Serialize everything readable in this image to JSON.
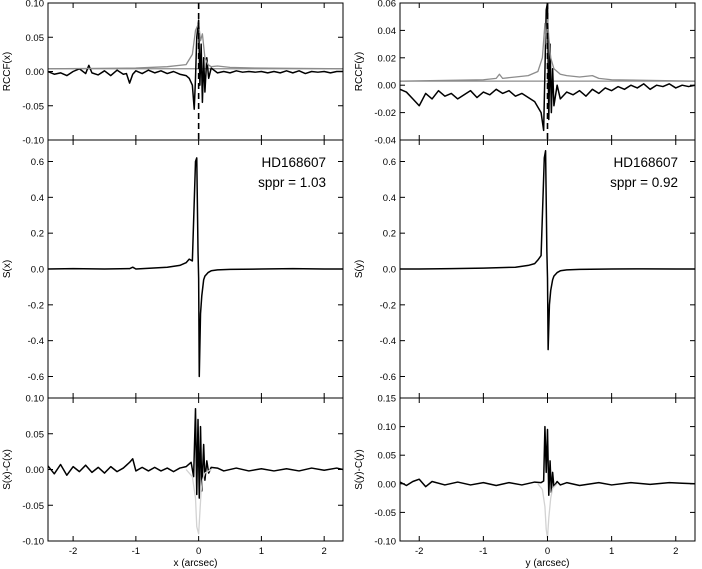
{
  "figure": {
    "colors": {
      "primary": "#000000",
      "secondary": "#8c8c8c",
      "tertiary": "#d2d2d2",
      "frame": "#000000",
      "zero_line": "#8c8c8c"
    }
  },
  "chart_data": [
    {
      "id": "x-rccf",
      "type": "line",
      "column": "x",
      "row": "top",
      "ylabel": "RCCF(x)",
      "ylim": [
        -0.1,
        0.1
      ],
      "xlim": [
        -2.4,
        2.3
      ],
      "yticks": [
        -0.1,
        -0.05,
        0.0,
        0.05,
        0.1
      ],
      "ytick_labels": [
        "-0.10",
        "-0.05",
        "0.00",
        "0.05",
        "0.10"
      ],
      "dashed_vline_x": 0.0,
      "zero_line_y": 0.004,
      "series": [
        {
          "role": "measured",
          "color": "#000000",
          "x": [
            -2.4,
            -2.3,
            -2.2,
            -2.1,
            -2.0,
            -1.9,
            -1.8,
            -1.75,
            -1.7,
            -1.6,
            -1.5,
            -1.4,
            -1.3,
            -1.2,
            -1.15,
            -1.1,
            -1.05,
            -1.0,
            -0.9,
            -0.8,
            -0.7,
            -0.6,
            -0.5,
            -0.4,
            -0.3,
            -0.2,
            -0.15,
            -0.1,
            -0.07,
            -0.05,
            -0.03,
            0.0,
            0.02,
            0.04,
            0.06,
            0.08,
            0.1,
            0.13,
            0.16,
            0.2,
            0.3,
            0.4,
            0.5,
            0.6,
            0.7,
            0.8,
            0.9,
            1.0,
            1.1,
            1.2,
            1.3,
            1.4,
            1.5,
            1.6,
            1.7,
            1.8,
            1.9,
            2.0,
            2.1,
            2.2,
            2.3
          ],
          "y": [
            0.0,
            -0.004,
            -0.002,
            -0.006,
            0.0,
            0.004,
            -0.003,
            0.009,
            -0.002,
            -0.005,
            0.001,
            -0.006,
            0.002,
            -0.004,
            -0.003,
            -0.017,
            -0.004,
            0.001,
            -0.003,
            0.002,
            -0.002,
            0.001,
            -0.003,
            0.0,
            -0.004,
            -0.006,
            -0.01,
            -0.02,
            -0.055,
            -0.01,
            0.05,
            0.075,
            -0.02,
            0.04,
            -0.045,
            0.02,
            -0.03,
            0.02,
            -0.01,
            0.005,
            -0.002,
            0.0,
            -0.002,
            0.001,
            -0.001,
            0.0,
            -0.001,
            0.0,
            -0.002,
            0.0,
            -0.002,
            0.001,
            -0.002,
            0.001,
            -0.003,
            0.0,
            -0.001,
            0.0,
            -0.002,
            0.0,
            0.0
          ]
        },
        {
          "role": "model",
          "color": "#8c8c8c",
          "x": [
            -2.4,
            -1.0,
            -0.5,
            -0.2,
            -0.1,
            -0.05,
            0.0,
            0.03,
            0.06,
            0.1,
            0.15,
            0.2,
            0.3,
            0.5,
            0.9,
            2.3
          ],
          "y": [
            0.004,
            0.005,
            0.007,
            0.01,
            0.025,
            0.06,
            0.07,
            0.045,
            0.055,
            0.02,
            0.01,
            0.007,
            0.008,
            0.006,
            0.005,
            0.004
          ]
        }
      ]
    },
    {
      "id": "x-s",
      "type": "line",
      "column": "x",
      "row": "middle",
      "ylabel": "S(x)",
      "ylim": [
        -0.72,
        0.72
      ],
      "xlim": [
        -2.4,
        2.3
      ],
      "yticks": [
        -0.6,
        -0.4,
        -0.2,
        0.0,
        0.2,
        0.4,
        0.6
      ],
      "ytick_labels": [
        "-0.6",
        "-0.4",
        "-0.2",
        "0.0",
        "0.2",
        "0.4",
        "0.6"
      ],
      "annotation": {
        "object": "HD168607",
        "sppr": "sppr = 1.03"
      },
      "series": [
        {
          "role": "measured",
          "color": "#000000",
          "x": [
            -2.4,
            -2.0,
            -1.5,
            -1.1,
            -1.05,
            -1.0,
            -0.5,
            -0.3,
            -0.2,
            -0.15,
            -0.1,
            -0.05,
            -0.03,
            -0.01,
            0.0,
            0.01,
            0.03,
            0.05,
            0.08,
            0.1,
            0.15,
            0.2,
            0.3,
            0.5,
            1.0,
            1.5,
            2.0,
            2.3
          ],
          "y": [
            0.0,
            0.002,
            0.0,
            0.002,
            0.01,
            0.0,
            0.01,
            0.02,
            0.035,
            0.055,
            0.045,
            0.6,
            0.62,
            0.1,
            -0.05,
            -0.6,
            -0.25,
            -0.15,
            -0.06,
            -0.04,
            -0.02,
            -0.01,
            -0.005,
            -0.002,
            0.0,
            0.002,
            0.0,
            0.0
          ]
        }
      ]
    },
    {
      "id": "x-resid",
      "type": "line",
      "column": "x",
      "row": "bottom",
      "ylabel": "S(x)-C(x)",
      "xlabel": "x (arcsec)",
      "ylim": [
        -0.1,
        0.1
      ],
      "xlim": [
        -2.4,
        2.3
      ],
      "yticks": [
        -0.1,
        -0.05,
        0.0,
        0.05,
        0.1
      ],
      "ytick_labels": [
        "-0.10",
        "-0.05",
        "0.00",
        "0.05",
        "0.10"
      ],
      "xticks": [
        -2,
        -1,
        0,
        1,
        2
      ],
      "xtick_labels": [
        "-2",
        "-1",
        "0",
        "1",
        "2"
      ],
      "series": [
        {
          "role": "residual",
          "color": "#000000",
          "x": [
            -2.4,
            -2.3,
            -2.2,
            -2.1,
            -2.0,
            -1.9,
            -1.8,
            -1.7,
            -1.6,
            -1.5,
            -1.4,
            -1.3,
            -1.2,
            -1.1,
            -1.05,
            -1.0,
            -0.9,
            -0.8,
            -0.7,
            -0.6,
            -0.5,
            -0.4,
            -0.3,
            -0.2,
            -0.12,
            -0.08,
            -0.05,
            -0.03,
            -0.01,
            0.01,
            0.03,
            0.05,
            0.08,
            0.1,
            0.13,
            0.16,
            0.2,
            0.3,
            0.4,
            0.6,
            0.8,
            1.0,
            1.2,
            1.4,
            1.6,
            1.8,
            2.0,
            2.2,
            2.3
          ],
          "y": [
            0.005,
            -0.006,
            0.007,
            -0.008,
            0.004,
            -0.003,
            0.006,
            -0.004,
            0.003,
            -0.005,
            0.004,
            -0.003,
            0.002,
            0.01,
            0.015,
            -0.002,
            0.003,
            -0.002,
            0.003,
            -0.002,
            0.002,
            -0.003,
            0.002,
            0.004,
            0.01,
            -0.01,
            0.085,
            -0.035,
            0.07,
            -0.04,
            0.06,
            -0.03,
            0.035,
            -0.015,
            0.012,
            -0.005,
            0.003,
            0.002,
            -0.002,
            0.002,
            -0.002,
            0.001,
            -0.002,
            0.001,
            -0.002,
            0.002,
            -0.001,
            0.002,
            0.0
          ]
        },
        {
          "role": "component",
          "color": "#d2d2d2",
          "x": [
            -0.2,
            -0.1,
            -0.05,
            -0.03,
            0.0,
            0.02,
            0.04,
            0.06,
            0.1,
            0.2
          ],
          "y": [
            0.0,
            -0.01,
            -0.04,
            -0.08,
            -0.09,
            -0.06,
            -0.03,
            -0.015,
            -0.005,
            0.0
          ]
        }
      ]
    },
    {
      "id": "y-rccf",
      "type": "line",
      "column": "y",
      "row": "top",
      "ylabel": "RCCF(y)",
      "ylim": [
        -0.04,
        0.06
      ],
      "xlim": [
        -2.3,
        2.3
      ],
      "yticks": [
        -0.04,
        -0.02,
        0.0,
        0.02,
        0.04,
        0.06
      ],
      "ytick_labels": [
        "-0.04",
        "-0.02",
        "0.00",
        "0.02",
        "0.04",
        "0.06"
      ],
      "dashed_vline_x": 0.0,
      "zero_line_y": 0.003,
      "series": [
        {
          "role": "measured",
          "color": "#000000",
          "x": [
            -2.3,
            -2.2,
            -2.1,
            -2.0,
            -1.9,
            -1.8,
            -1.7,
            -1.6,
            -1.5,
            -1.4,
            -1.3,
            -1.2,
            -1.1,
            -1.0,
            -0.9,
            -0.8,
            -0.7,
            -0.6,
            -0.5,
            -0.4,
            -0.3,
            -0.2,
            -0.15,
            -0.1,
            -0.06,
            -0.04,
            -0.02,
            0.0,
            0.02,
            0.04,
            0.06,
            0.08,
            0.1,
            0.15,
            0.2,
            0.3,
            0.4,
            0.5,
            0.6,
            0.7,
            0.8,
            0.9,
            1.0,
            1.1,
            1.2,
            1.3,
            1.4,
            1.5,
            1.6,
            1.7,
            1.8,
            1.9,
            2.0,
            2.1,
            2.2,
            2.3
          ],
          "y": [
            -0.003,
            -0.005,
            -0.01,
            -0.015,
            -0.006,
            -0.01,
            -0.004,
            -0.008,
            -0.006,
            -0.01,
            -0.007,
            -0.004,
            -0.009,
            -0.005,
            -0.007,
            -0.003,
            -0.006,
            -0.004,
            -0.008,
            -0.006,
            -0.009,
            -0.012,
            -0.016,
            -0.02,
            -0.033,
            0.01,
            0.055,
            0.06,
            -0.025,
            0.03,
            -0.02,
            0.012,
            -0.015,
            0.0,
            -0.01,
            -0.005,
            -0.007,
            -0.004,
            -0.008,
            -0.003,
            -0.006,
            -0.002,
            -0.004,
            -0.001,
            -0.003,
            0.0,
            -0.002,
            0.001,
            -0.003,
            0.0,
            -0.001,
            0.001,
            -0.002,
            0.0,
            -0.001,
            0.0
          ]
        },
        {
          "role": "model",
          "color": "#8c8c8c",
          "x": [
            -2.3,
            -1.0,
            -0.8,
            -0.75,
            -0.7,
            -0.5,
            -0.3,
            -0.15,
            -0.08,
            -0.04,
            -0.02,
            0.0,
            0.02,
            0.05,
            0.1,
            0.15,
            0.2,
            0.3,
            0.5,
            0.7,
            0.8,
            1.0,
            2.3
          ],
          "y": [
            0.003,
            0.004,
            0.005,
            0.008,
            0.005,
            0.006,
            0.007,
            0.01,
            0.02,
            0.045,
            0.03,
            0.05,
            0.035,
            0.02,
            0.012,
            0.01,
            0.008,
            0.007,
            0.006,
            0.007,
            0.005,
            0.004,
            0.003
          ]
        }
      ]
    },
    {
      "id": "y-s",
      "type": "line",
      "column": "y",
      "row": "middle",
      "ylabel": "S(y)",
      "ylim": [
        -0.72,
        0.72
      ],
      "xlim": [
        -2.3,
        2.3
      ],
      "yticks": [
        -0.6,
        -0.4,
        -0.2,
        0.0,
        0.2,
        0.4,
        0.6
      ],
      "ytick_labels": [
        "-0.6",
        "-0.4",
        "-0.2",
        "0.0",
        "0.2",
        "0.4",
        "0.6"
      ],
      "annotation": {
        "object": "HD168607",
        "sppr": "sppr = 0.92"
      },
      "series": [
        {
          "role": "measured",
          "color": "#000000",
          "x": [
            -2.3,
            -2.0,
            -1.5,
            -1.0,
            -0.5,
            -0.3,
            -0.2,
            -0.15,
            -0.1,
            -0.05,
            -0.03,
            -0.01,
            0.0,
            0.01,
            0.03,
            0.05,
            0.08,
            0.1,
            0.15,
            0.2,
            0.3,
            0.5,
            1.0,
            1.5,
            2.0,
            2.3
          ],
          "y": [
            0.0,
            0.0,
            0.002,
            0.005,
            0.01,
            0.02,
            0.03,
            0.05,
            0.075,
            0.62,
            0.66,
            0.1,
            -0.05,
            -0.45,
            -0.2,
            -0.12,
            -0.06,
            -0.04,
            -0.02,
            -0.01,
            -0.005,
            -0.002,
            0.0,
            0.001,
            0.0,
            0.0
          ]
        }
      ]
    },
    {
      "id": "y-resid",
      "type": "line",
      "column": "y",
      "row": "bottom",
      "ylabel": "S(y)-C(y)",
      "xlabel": "y (arcsec)",
      "ylim": [
        -0.1,
        0.15
      ],
      "xlim": [
        -2.3,
        2.3
      ],
      "yticks": [
        -0.1,
        -0.05,
        0.0,
        0.05,
        0.1,
        0.15
      ],
      "ytick_labels": [
        "-0.10",
        "-0.05",
        "0.00",
        "0.05",
        "0.10",
        "0.15"
      ],
      "xticks": [
        -2,
        -1,
        0,
        1,
        2
      ],
      "xtick_labels": [
        "-2",
        "-1",
        "0",
        "1",
        "2"
      ],
      "series": [
        {
          "role": "residual",
          "color": "#000000",
          "x": [
            -2.3,
            -2.2,
            -2.1,
            -2.0,
            -1.9,
            -1.8,
            -1.6,
            -1.4,
            -1.2,
            -1.0,
            -0.8,
            -0.6,
            -0.4,
            -0.2,
            -0.1,
            -0.06,
            -0.04,
            -0.02,
            0.0,
            0.02,
            0.04,
            0.06,
            0.08,
            0.1,
            0.15,
            0.2,
            0.3,
            0.5,
            0.8,
            1.0,
            1.3,
            1.6,
            1.9,
            2.1,
            2.3
          ],
          "y": [
            0.003,
            -0.003,
            0.004,
            0.008,
            -0.005,
            0.004,
            -0.002,
            0.003,
            -0.002,
            0.002,
            -0.003,
            0.002,
            -0.002,
            0.003,
            0.002,
            0.005,
            0.1,
            0.02,
            0.095,
            -0.02,
            0.04,
            -0.015,
            0.02,
            -0.005,
            0.004,
            -0.002,
            0.002,
            -0.003,
            0.002,
            -0.002,
            0.002,
            -0.001,
            0.002,
            0.001,
            0.0
          ]
        },
        {
          "role": "component",
          "color": "#d2d2d2",
          "x": [
            -0.15,
            -0.08,
            -0.04,
            -0.02,
            0.0,
            0.02,
            0.05,
            0.08,
            0.15
          ],
          "y": [
            0.0,
            -0.01,
            -0.04,
            -0.08,
            -0.095,
            -0.06,
            -0.025,
            -0.008,
            0.0
          ]
        }
      ]
    }
  ]
}
